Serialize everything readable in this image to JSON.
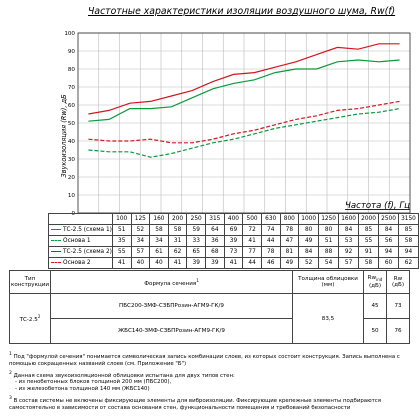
{
  "title": "Частотные характеристики изоляции воздушного шума, Rw(f)",
  "chart_data": {
    "type": "line",
    "title": "Частотные характеристики изоляции воздушного шума, Rw(f)",
    "xlabel": "Частота (f), Гц",
    "ylabel": "Звукоизоляция (Rw), дБ",
    "ylim": [
      0,
      100
    ],
    "yticks": [
      "0",
      "10",
      "20",
      "30",
      "40",
      "50",
      "60",
      "70",
      "80",
      "90",
      "100"
    ],
    "x": [
      "100",
      "125",
      "160",
      "200",
      "250",
      "315",
      "400",
      "500",
      "630",
      "800",
      "1000",
      "1250",
      "1600",
      "2000",
      "2500",
      "3150"
    ],
    "grid": true,
    "series": [
      {
        "name": "ТС-2.5 (схема 1)",
        "color": "#0a9a3e",
        "dash": false,
        "values": [
          51,
          52,
          58,
          58,
          59,
          64,
          69,
          72,
          74,
          78,
          80,
          80,
          84,
          85,
          84,
          85
        ]
      },
      {
        "name": "Основа 1",
        "color": "#0a9a3e",
        "dash": true,
        "values": [
          35,
          34,
          34,
          31,
          33,
          36,
          39,
          41,
          44,
          47,
          49,
          51,
          53,
          55,
          56,
          58
        ]
      },
      {
        "name": "ТС-2.5 (схема 2)",
        "color": "#d6141e",
        "dash": false,
        "values": [
          55,
          57,
          61,
          62,
          65,
          68,
          73,
          77,
          78,
          81,
          84,
          88,
          92,
          91,
          94,
          94
        ]
      },
      {
        "name": "Основа 2",
        "color": "#d6141e",
        "dash": true,
        "values": [
          41,
          40,
          40,
          41,
          39,
          39,
          41,
          44,
          46,
          49,
          52,
          54,
          57,
          58,
          60,
          62
        ]
      }
    ]
  },
  "construction_table": {
    "headers": {
      "type": "Тип конструкции",
      "formula": "Формула сечения",
      "formula_note": "1",
      "thickness": "Толщина облицовки (мм)",
      "rw_ind": "Rw",
      "rw_ind_sub": "ind",
      "rw_ind_unit": "(дБ)",
      "rw": "Rw",
      "rw_unit": "(дБ)"
    },
    "type_label": "ТС-2.5",
    "type_note": "2",
    "thickness": "83,5",
    "rows": [
      {
        "formula": "ПБС200-ЗМФ-СЗБПРозин-АГМ9-ГК/9",
        "rw_ind": "45",
        "rw": "73"
      },
      {
        "formula": "ЖБС140-ЗМФ-СЗБПРозин-АГМ9-ГК/9",
        "rw_ind": "50",
        "rw": "76"
      }
    ]
  },
  "notes": [
    {
      "mark": "1",
      "text": "Под \"формулой сечения\" понимается символическая запись комбинации слоев, из которых состоит конструкция. Запись выполнена с помощью сокращенных названий слоев (см. Приложение \"Б\")"
    },
    {
      "mark": "2",
      "text": "Данная схема звукоизоляционной облицовки испытана для двух типов стен:"
    },
    {
      "mark": "",
      "text": "- из пенобетонных блоков толщиной 200 мм (ПБС200),"
    },
    {
      "mark": "",
      "text": "- из железобетона толщиной 140 мм (ЖБС140)"
    },
    {
      "mark": "3",
      "text": "В состав системы не включены фиксирующие элементы для виброизоляции. Фиксирующие крепежные элементы подбираются самостоятельно в зависимости от состава основания стен, функциональности помещения и требований безопасности"
    }
  ]
}
